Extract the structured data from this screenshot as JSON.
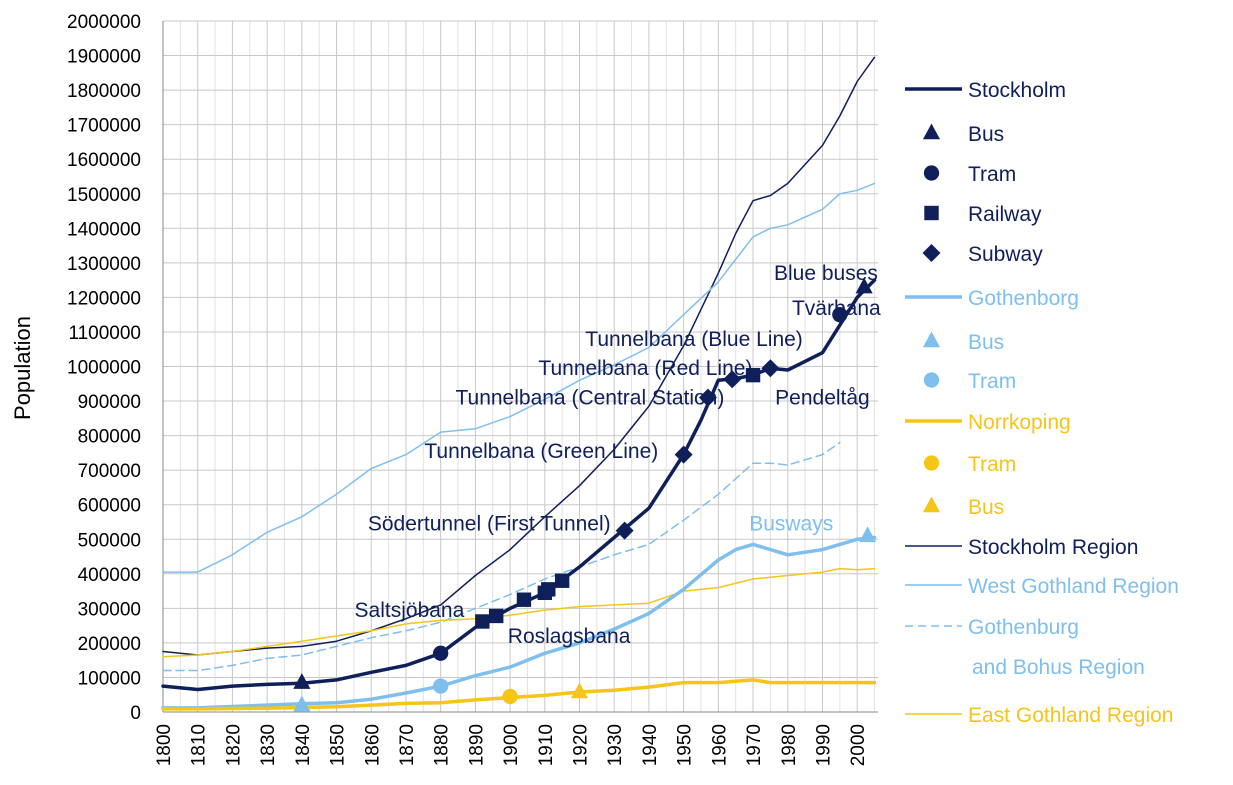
{
  "chart_data": {
    "type": "line",
    "title": "",
    "xlabel": "",
    "ylabel": "Population",
    "xlim": [
      1800,
      2006
    ],
    "ylim": [
      0,
      2000000
    ],
    "x_ticks": [
      1800,
      1810,
      1820,
      1830,
      1840,
      1850,
      1860,
      1870,
      1880,
      1890,
      1900,
      1910,
      1920,
      1930,
      1940,
      1950,
      1960,
      1970,
      1980,
      1990,
      2000
    ],
    "y_ticks": [
      0,
      100000,
      200000,
      300000,
      400000,
      500000,
      600000,
      700000,
      800000,
      900000,
      1000000,
      1100000,
      1200000,
      1300000,
      1400000,
      1500000,
      1600000,
      1700000,
      1800000,
      1900000,
      2000000
    ],
    "grid": true,
    "legend_placement": "right",
    "colors": {
      "dark": "#0f1f5a",
      "light": "#7fbfee",
      "yellow": "#f5c518"
    },
    "series": [
      {
        "name": "Stockholm Region",
        "color": "#0f1f5a",
        "style": "thin",
        "x": [
          1800,
          1810,
          1820,
          1830,
          1840,
          1850,
          1860,
          1870,
          1880,
          1890,
          1900,
          1910,
          1920,
          1930,
          1940,
          1950,
          1960,
          1965,
          1970,
          1975,
          1980,
          1990,
          1995,
          2000,
          2005
        ],
        "y": [
          175000,
          165000,
          175000,
          185000,
          190000,
          205000,
          235000,
          270000,
          310000,
          395000,
          470000,
          565000,
          655000,
          760000,
          885000,
          1060000,
          1270000,
          1385000,
          1480000,
          1495000,
          1530000,
          1640000,
          1725000,
          1825000,
          1895000
        ]
      },
      {
        "name": "West Gothland Region",
        "color": "#7fbfee",
        "style": "thin",
        "x": [
          1800,
          1810,
          1820,
          1830,
          1840,
          1850,
          1860,
          1870,
          1880,
          1890,
          1900,
          1910,
          1920,
          1930,
          1940,
          1950,
          1960,
          1970,
          1975,
          1980,
          1990,
          1995,
          2000,
          2005
        ],
        "y": [
          405000,
          405000,
          455000,
          520000,
          565000,
          630000,
          705000,
          745000,
          810000,
          820000,
          855000,
          905000,
          960000,
          1005000,
          1055000,
          1150000,
          1245000,
          1375000,
          1400000,
          1410000,
          1455000,
          1500000,
          1510000,
          1530000
        ]
      },
      {
        "name": "Gothenburg and Bohus Region",
        "color": "#7fbfee",
        "style": "dashed",
        "x": [
          1800,
          1810,
          1820,
          1830,
          1840,
          1850,
          1860,
          1870,
          1880,
          1890,
          1900,
          1910,
          1920,
          1930,
          1940,
          1950,
          1960,
          1970,
          1975,
          1980,
          1990,
          1995
        ],
        "y": [
          120000,
          120000,
          135000,
          155000,
          165000,
          190000,
          215000,
          235000,
          260000,
          300000,
          340000,
          385000,
          420000,
          455000,
          485000,
          555000,
          630000,
          720000,
          720000,
          715000,
          745000,
          780000
        ]
      },
      {
        "name": "East Gothland Region",
        "color": "#f5c518",
        "style": "thin",
        "x": [
          1800,
          1810,
          1820,
          1830,
          1840,
          1850,
          1860,
          1870,
          1880,
          1890,
          1900,
          1910,
          1920,
          1930,
          1940,
          1950,
          1960,
          1970,
          1980,
          1990,
          1995,
          2000,
          2005
        ],
        "y": [
          160000,
          165000,
          175000,
          190000,
          205000,
          220000,
          235000,
          255000,
          265000,
          270000,
          280000,
          295000,
          305000,
          310000,
          315000,
          350000,
          360000,
          385000,
          395000,
          405000,
          415000,
          412000,
          415000
        ]
      },
      {
        "name": "Stockholm",
        "color": "#0f1f5a",
        "style": "thick",
        "x": [
          1800,
          1810,
          1820,
          1830,
          1840,
          1850,
          1860,
          1870,
          1880,
          1890,
          1900,
          1910,
          1920,
          1930,
          1940,
          1950,
          1955,
          1960,
          1965,
          1970,
          1975,
          1980,
          1990,
          2000,
          2005
        ],
        "y": [
          75000,
          65000,
          75000,
          80000,
          83000,
          93000,
          115000,
          135000,
          170000,
          245000,
          300000,
          345000,
          420000,
          505000,
          590000,
          745000,
          845000,
          960000,
          965000,
          975000,
          995000,
          990000,
          1040000,
          1200000,
          1250000
        ]
      },
      {
        "name": "Gothenborg",
        "color": "#7fbfee",
        "style": "thick",
        "x": [
          1800,
          1810,
          1820,
          1830,
          1840,
          1850,
          1860,
          1870,
          1880,
          1890,
          1900,
          1910,
          1920,
          1930,
          1940,
          1950,
          1960,
          1965,
          1970,
          1980,
          1990,
          2000,
          2005
        ],
        "y": [
          12000,
          12000,
          16000,
          20000,
          24000,
          27000,
          37000,
          55000,
          75000,
          105000,
          130000,
          170000,
          200000,
          240000,
          285000,
          355000,
          440000,
          470000,
          485000,
          455000,
          470000,
          500000,
          505000
        ]
      },
      {
        "name": "Norrkoping",
        "color": "#f5c518",
        "style": "thick",
        "x": [
          1800,
          1810,
          1820,
          1830,
          1840,
          1850,
          1860,
          1870,
          1880,
          1890,
          1900,
          1910,
          1920,
          1930,
          1940,
          1950,
          1960,
          1970,
          1975,
          1980,
          1990,
          2000,
          2005
        ],
        "y": [
          9000,
          9000,
          10000,
          11000,
          13000,
          15000,
          20000,
          25000,
          27000,
          35000,
          42000,
          48000,
          58000,
          63000,
          72000,
          85000,
          85000,
          93000,
          85000,
          85000,
          85000,
          85000,
          85000
        ]
      }
    ],
    "markers": [
      {
        "group": "Stockholm",
        "kind": "Bus",
        "shape": "triangle",
        "color": "#0f1f5a",
        "x": 1840,
        "y": 85000
      },
      {
        "group": "Stockholm",
        "kind": "Bus",
        "shape": "triangle",
        "color": "#0f1f5a",
        "x": 2002,
        "y": 1230000
      },
      {
        "group": "Stockholm",
        "kind": "Tram",
        "shape": "circle",
        "color": "#0f1f5a",
        "x": 1880,
        "y": 170000
      },
      {
        "group": "Stockholm",
        "kind": "Tram",
        "shape": "circle",
        "color": "#0f1f5a",
        "x": 1995,
        "y": 1150000
      },
      {
        "group": "Stockholm",
        "kind": "Railway",
        "shape": "square",
        "color": "#0f1f5a",
        "x": 1892,
        "y": 262000
      },
      {
        "group": "Stockholm",
        "kind": "Railway",
        "shape": "square",
        "color": "#0f1f5a",
        "x": 1896,
        "y": 278000
      },
      {
        "group": "Stockholm",
        "kind": "Railway",
        "shape": "square",
        "color": "#0f1f5a",
        "x": 1904,
        "y": 325000
      },
      {
        "group": "Stockholm",
        "kind": "Railway",
        "shape": "square",
        "color": "#0f1f5a",
        "x": 1910,
        "y": 345000
      },
      {
        "group": "Stockholm",
        "kind": "Railway",
        "shape": "square",
        "color": "#0f1f5a",
        "x": 1911,
        "y": 355000
      },
      {
        "group": "Stockholm",
        "kind": "Railway",
        "shape": "square",
        "color": "#0f1f5a",
        "x": 1915,
        "y": 380000
      },
      {
        "group": "Stockholm",
        "kind": "Railway",
        "shape": "square",
        "color": "#0f1f5a",
        "x": 1970,
        "y": 975000
      },
      {
        "group": "Stockholm",
        "kind": "Subway",
        "shape": "diamond",
        "color": "#0f1f5a",
        "x": 1933,
        "y": 525000
      },
      {
        "group": "Stockholm",
        "kind": "Subway",
        "shape": "diamond",
        "color": "#0f1f5a",
        "x": 1950,
        "y": 745000
      },
      {
        "group": "Stockholm",
        "kind": "Subway",
        "shape": "diamond",
        "color": "#0f1f5a",
        "x": 1957,
        "y": 910000
      },
      {
        "group": "Stockholm",
        "kind": "Subway",
        "shape": "diamond",
        "color": "#0f1f5a",
        "x": 1964,
        "y": 963000
      },
      {
        "group": "Stockholm",
        "kind": "Subway",
        "shape": "diamond",
        "color": "#0f1f5a",
        "x": 1975,
        "y": 995000
      },
      {
        "group": "Gothenborg",
        "kind": "Bus",
        "shape": "triangle",
        "color": "#7fbfee",
        "x": 1840,
        "y": 20000
      },
      {
        "group": "Gothenborg",
        "kind": "Bus",
        "shape": "triangle",
        "color": "#7fbfee",
        "x": 2003,
        "y": 510000
      },
      {
        "group": "Gothenborg",
        "kind": "Tram",
        "shape": "circle",
        "color": "#7fbfee",
        "x": 1880,
        "y": 75000
      },
      {
        "group": "Norrkoping",
        "kind": "Tram",
        "shape": "circle",
        "color": "#f5c518",
        "x": 1900,
        "y": 45000
      },
      {
        "group": "Norrkoping",
        "kind": "Bus",
        "shape": "triangle",
        "color": "#f5c518",
        "x": 1920,
        "y": 58000
      }
    ],
    "annotations": [
      {
        "text": "Blue buses",
        "color": "#0f1f5a",
        "x": 1991,
        "y": 1270000
      },
      {
        "text": "Tvärbana",
        "color": "#0f1f5a",
        "x": 1994,
        "y": 1170000
      },
      {
        "text": "Tunnelbana (Blue Line)",
        "color": "#0f1f5a",
        "x": 1953,
        "y": 1080000
      },
      {
        "text": "Tunnelbana (Red Line)",
        "color": "#0f1f5a",
        "x": 1939,
        "y": 995000
      },
      {
        "text": "Tunnelbana (Central Station)",
        "color": "#0f1f5a",
        "x": 1923,
        "y": 910000
      },
      {
        "text": "Pendeltåg",
        "color": "#0f1f5a",
        "x": 1990,
        "y": 910000
      },
      {
        "text": "Tunnelbana (Green Line)",
        "color": "#0f1f5a",
        "x": 1909,
        "y": 755000
      },
      {
        "text": "Södertunnel (First Tunnel)",
        "color": "#0f1f5a",
        "x": 1894,
        "y": 545000
      },
      {
        "text": "Busways",
        "color": "#7fbfee",
        "x": 1981,
        "y": 545000
      },
      {
        "text": "Saltsjöbana",
        "color": "#0f1f5a",
        "x": 1871,
        "y": 295000
      },
      {
        "text": "Roslagsbana",
        "color": "#0f1f5a",
        "x": 1917,
        "y": 220000
      }
    ],
    "legend": [
      {
        "label": "Stockholm",
        "type": "line",
        "style": "thick",
        "color": "#0f1f5a",
        "text_color": "#0f1f5a"
      },
      {
        "label": "Bus",
        "type": "marker",
        "shape": "triangle",
        "color": "#0f1f5a",
        "text_color": "#0f1f5a"
      },
      {
        "label": "Tram",
        "type": "marker",
        "shape": "circle",
        "color": "#0f1f5a",
        "text_color": "#0f1f5a"
      },
      {
        "label": "Railway",
        "type": "marker",
        "shape": "square",
        "color": "#0f1f5a",
        "text_color": "#0f1f5a"
      },
      {
        "label": "Subway",
        "type": "marker",
        "shape": "diamond",
        "color": "#0f1f5a",
        "text_color": "#0f1f5a"
      },
      {
        "label": "Gothenborg",
        "type": "line",
        "style": "thick",
        "color": "#7fbfee",
        "text_color": "#7fbfee"
      },
      {
        "label": "Bus",
        "type": "marker",
        "shape": "triangle",
        "color": "#7fbfee",
        "text_color": "#7fbfee"
      },
      {
        "label": "Tram",
        "type": "marker",
        "shape": "circle",
        "color": "#7fbfee",
        "text_color": "#7fbfee"
      },
      {
        "label": "Norrkoping",
        "type": "line",
        "style": "thick",
        "color": "#f5c518",
        "text_color": "#f5c518"
      },
      {
        "label": "Tram",
        "type": "marker",
        "shape": "circle",
        "color": "#f5c518",
        "text_color": "#f5c518"
      },
      {
        "label": "Bus",
        "type": "marker",
        "shape": "triangle",
        "color": "#f5c518",
        "text_color": "#f5c518"
      },
      {
        "label": "Stockholm Region",
        "type": "line",
        "style": "thin",
        "color": "#0f1f5a",
        "text_color": "#0f1f5a"
      },
      {
        "label": "West Gothland Region",
        "type": "line",
        "style": "thin",
        "color": "#7fbfee",
        "text_color": "#7fbfee"
      },
      {
        "label": "Gothenburg",
        "label2": "and Bohus Region",
        "type": "line",
        "style": "dashed",
        "color": "#7fbfee",
        "text_color": "#7fbfee"
      },
      {
        "label": "East Gothland Region",
        "type": "line",
        "style": "thin",
        "color": "#f5c518",
        "text_color": "#f5c518"
      }
    ]
  }
}
